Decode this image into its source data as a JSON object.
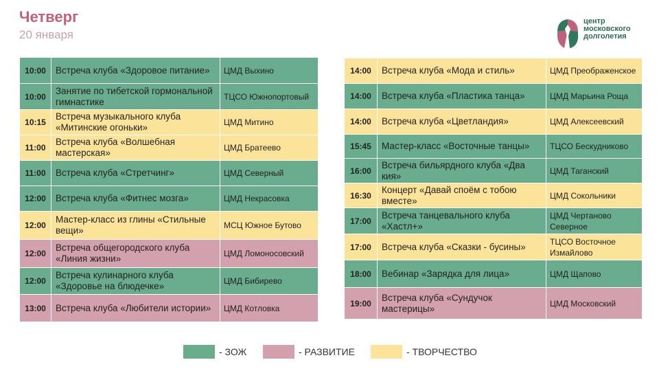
{
  "header": {
    "day": "Четверг",
    "date": "20 января"
  },
  "logo": {
    "line1": "центр",
    "line2": "московского",
    "line3": "долголетия"
  },
  "colors": {
    "zozh": "#6aac8e",
    "razvitie": "#d3a0ad",
    "tvorchestvo": "#fce39a"
  },
  "left": [
    {
      "time": "10:00",
      "event": "Встреча клуба «Здоровое питание»",
      "place": "ЦМД Выхино",
      "cat": "zozh"
    },
    {
      "time": "10:00",
      "event": "Занятие по тибетской гормональной гимнастике",
      "place": "ТЦСО Южнопортовый",
      "cat": "zozh"
    },
    {
      "time": "10:15",
      "event": "Встреча музыкального клуба «Митинские огоньки»",
      "place": "ЦМД Митино",
      "cat": "tvor"
    },
    {
      "time": "11:00",
      "event": "Встреча клуба «Волшебная мастерская»",
      "place": "ЦМД Братеево",
      "cat": "tvor"
    },
    {
      "time": "11:00",
      "event": "Встреча клуба «Стретчинг»",
      "place": "ЦМД Северный",
      "cat": "zozh"
    },
    {
      "time": "12:00",
      "event": "Встреча клуба «Фитнес мозга»",
      "place": "ЦМД Некрасовка",
      "cat": "zozh"
    },
    {
      "time": "12:00",
      "event": "Мастер-класс из глины «Стильные вещи»",
      "place": "МСЦ Южное Бутово",
      "cat": "tvor"
    },
    {
      "time": "12:00",
      "event": "Встреча общегородского клуба «Линия жизни»",
      "place": "ЦМД Ломоносовский",
      "cat": "razv"
    },
    {
      "time": "12:00",
      "event": "Встреча кулинарного клуба «Здоровье на блюдечке»",
      "place": "ЦМД Бибирево",
      "cat": "zozh"
    },
    {
      "time": "13:00",
      "event": "Встреча клуба «Любители истории»",
      "place": "ЦМД Котловка",
      "cat": "razv"
    }
  ],
  "right": [
    {
      "time": "14:00",
      "event": "Встреча клуба «Мода и стиль»",
      "place": "ЦМД Преображенское",
      "cat": "tvor"
    },
    {
      "time": "14:00",
      "event": "Встреча клуба «Пластика танца»",
      "place": "ЦМД Марьина Роща",
      "cat": "zozh"
    },
    {
      "time": "14:00",
      "event": "Встреча клуба «Цветландия»",
      "place": "ЦМД Алексеевский",
      "cat": "tvor"
    },
    {
      "time": "15:45",
      "event": "Мастер-класс «Восточные танцы»",
      "place": "ТЦСО Бескудниково",
      "cat": "zozh"
    },
    {
      "time": "16:00",
      "event": "Встреча бильярдного клуба «Два кия»",
      "place": "ЦМД Таганский",
      "cat": "zozh"
    },
    {
      "time": "16:30",
      "event": "Концерт «Давай споём с тобою вместе»",
      "place": "ЦМД Сокольники",
      "cat": "tvor"
    },
    {
      "time": "17:00",
      "event": "Встреча танцевального клуба «Хастл+»",
      "place": "ЦМД Чертаново Северное",
      "cat": "zozh"
    },
    {
      "time": "17:00",
      "event": "Встреча клуба «Сказки - бусины»",
      "place": "ТЦСО Восточное Измайлово",
      "cat": "tvor"
    },
    {
      "time": "18:00",
      "event": "Вебинар «Зарядка для лица»",
      "place": "ЦМД Щапово",
      "cat": "zozh"
    },
    {
      "time": "19:00",
      "event": "Встреча клуба «Сундучок мастерицы»",
      "place": "ЦМД Московский",
      "cat": "razv"
    }
  ],
  "legend": {
    "zozh": "- ЗОЖ",
    "razvitie": "- РАЗВИТИЕ",
    "tvorchestvo": "- ТВОРЧЕСТВО"
  }
}
